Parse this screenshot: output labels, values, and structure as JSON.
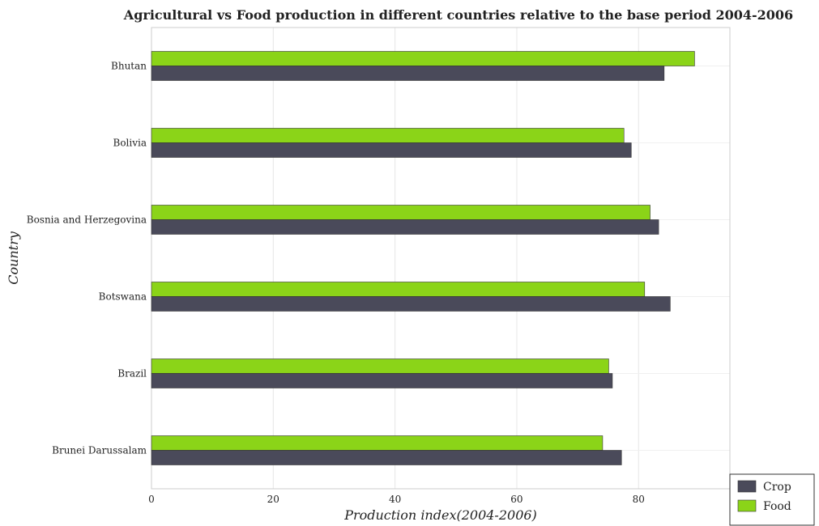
{
  "chart_data": {
    "type": "bar",
    "orientation": "horizontal",
    "title": "Agricultural vs Food production in different countries relative to the base period 2004-2006",
    "xlabel": "Production index(2004-2006)",
    "ylabel": "Country",
    "categories": [
      "Bhutan",
      "Bolivia",
      "Bosnia and Herzegovina",
      "Botswana",
      "Brazil",
      "Brunei Darussalam"
    ],
    "series": [
      {
        "name": "Crop",
        "color": "#4a4a5a",
        "values": [
          84.2,
          78.8,
          83.3,
          85.2,
          75.7,
          77.2
        ]
      },
      {
        "name": "Food",
        "color": "#8bd418",
        "values": [
          89.2,
          77.6,
          81.9,
          81.0,
          75.1,
          74.1
        ]
      }
    ],
    "xlim": [
      0,
      95
    ],
    "xticks": [
      0,
      20,
      40,
      60,
      80
    ],
    "grid": true,
    "legend_position": "bottom-right"
  }
}
